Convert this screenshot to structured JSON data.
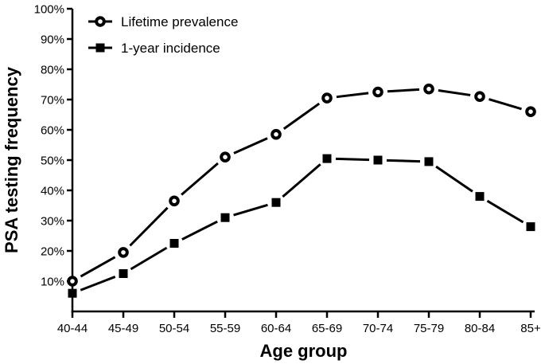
{
  "chart_data": {
    "type": "line",
    "title": "",
    "xlabel": "Age group",
    "ylabel": "PSA testing frequency",
    "categories": [
      "40-44",
      "45-49",
      "50-54",
      "55-59",
      "60-64",
      "65-69",
      "70-74",
      "75-79",
      "80-84",
      "85+"
    ],
    "series": [
      {
        "name": "Lifetime prevalence",
        "marker": "open-circle",
        "values": [
          10,
          19.5,
          36.5,
          51,
          58.5,
          70.5,
          72.5,
          73.5,
          71,
          66
        ]
      },
      {
        "name": "1-year incidence",
        "marker": "filled-square",
        "values": [
          6,
          12.5,
          22.5,
          31,
          36,
          50.5,
          50,
          49.5,
          38,
          28
        ]
      }
    ],
    "ylim": [
      0,
      100
    ],
    "yticks": [
      10,
      20,
      30,
      40,
      50,
      60,
      70,
      80,
      90,
      100
    ],
    "ytick_suffix": "%",
    "grid": false,
    "legend_position": "top-left-inside",
    "line_color": "#000000",
    "background_color": "#ffffff"
  }
}
